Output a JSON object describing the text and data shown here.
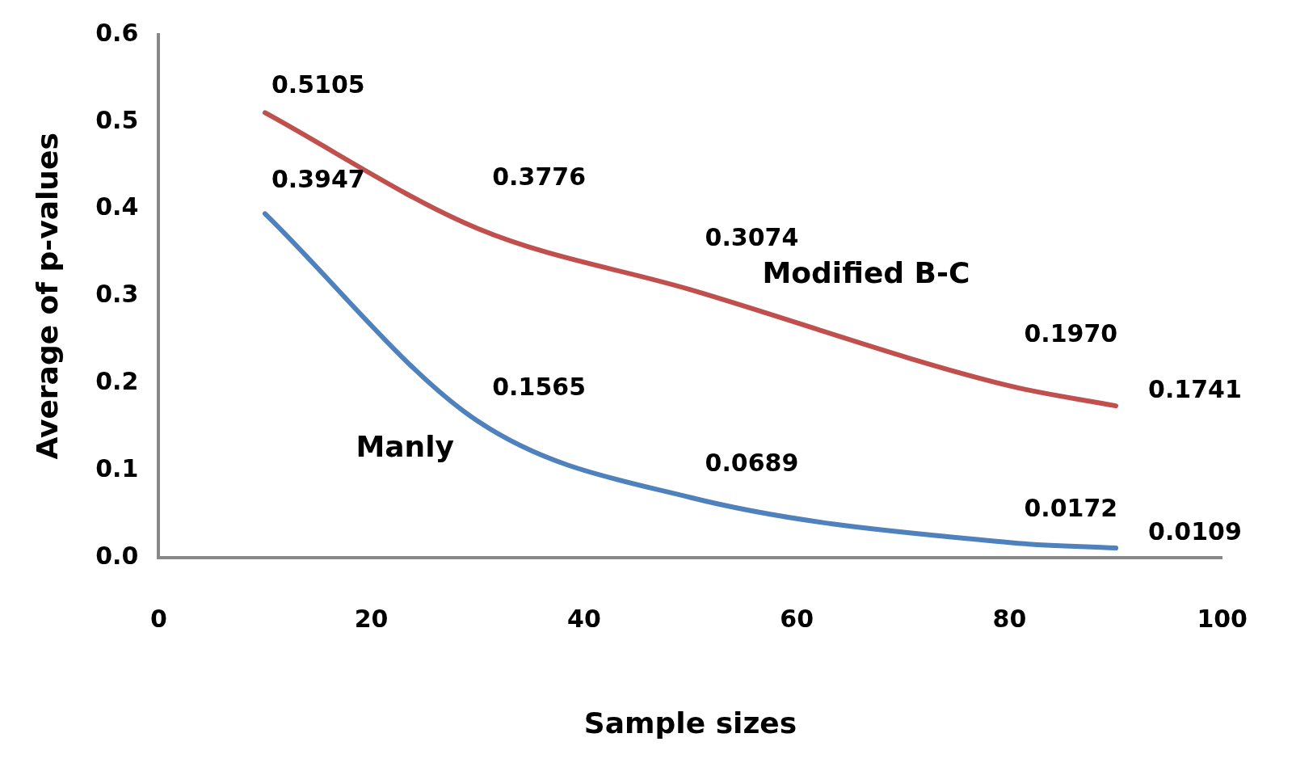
{
  "chart_data": {
    "type": "line",
    "xlabel": "Sample sizes",
    "ylabel": "Average of p-values",
    "x": [
      10,
      30,
      50,
      80,
      90
    ],
    "series": [
      {
        "name": "Modified B-C",
        "color": "#c0504d",
        "values": [
          0.5105,
          0.3776,
          0.3074,
          0.197,
          0.1741
        ],
        "value_labels": [
          "0.5105",
          "0.3776",
          "0.3074",
          "0.1970",
          "0.1741"
        ]
      },
      {
        "name": "Manly",
        "color": "#4f81bd",
        "values": [
          0.3947,
          0.1565,
          0.0689,
          0.0172,
          0.0109
        ],
        "value_labels": [
          "0.3947",
          "0.1565",
          "0.0689",
          "0.0172",
          "0.0109"
        ]
      }
    ],
    "xlim": [
      0,
      100
    ],
    "xticks": [
      0,
      20,
      40,
      60,
      80,
      100
    ],
    "ylim": [
      0,
      0.6
    ],
    "yticks": [
      {
        "value": 0,
        "label": "0.0"
      },
      0.1,
      0.2,
      0.3,
      0.4,
      0.5,
      0.6
    ],
    "grid": false,
    "legend": false,
    "marker": "none",
    "line_style": "solid"
  }
}
